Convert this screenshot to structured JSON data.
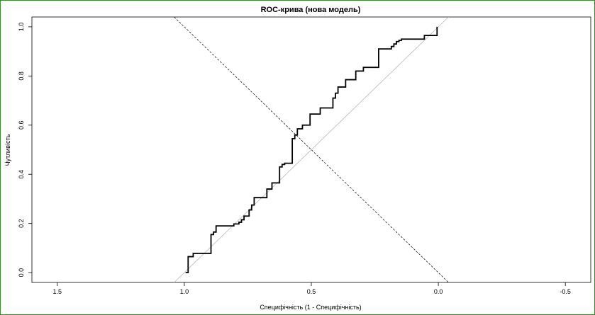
{
  "chart_data": {
    "type": "line",
    "title": "ROC-крива (нова модель)",
    "xlabel": "Специфічність (1 - Специфічність)",
    "ylabel": "Чутливість",
    "x_reversed": true,
    "xlim": [
      1.6,
      -0.6
    ],
    "ylim": [
      -0.04,
      1.04
    ],
    "x_ticks": [
      1.5,
      1.0,
      0.5,
      0.0,
      -0.5
    ],
    "x_tick_labels": [
      "1.5",
      "1.0",
      "0.5",
      "0.0",
      "-0.5"
    ],
    "y_ticks": [
      0.0,
      0.2,
      0.4,
      0.6,
      0.8,
      1.0
    ],
    "y_tick_labels": [
      "0.0",
      "0.2",
      "0.4",
      "0.6",
      "0.8",
      "1.0"
    ],
    "grid": false,
    "series": [
      {
        "role": "roc-curve",
        "style": "solid",
        "x": [
          0.995,
          0.995,
          0.985,
          0.985,
          0.965,
          0.965,
          0.895,
          0.895,
          0.885,
          0.885,
          0.875,
          0.875,
          0.805,
          0.805,
          0.785,
          0.785,
          0.775,
          0.775,
          0.765,
          0.765,
          0.745,
          0.745,
          0.735,
          0.735,
          0.725,
          0.725,
          0.675,
          0.675,
          0.655,
          0.655,
          0.625,
          0.625,
          0.615,
          0.615,
          0.605,
          0.605,
          0.575,
          0.575,
          0.565,
          0.565,
          0.555,
          0.555,
          0.535,
          0.535,
          0.505,
          0.505,
          0.465,
          0.465,
          0.415,
          0.415,
          0.405,
          0.405,
          0.395,
          0.395,
          0.365,
          0.365,
          0.325,
          0.325,
          0.295,
          0.295,
          0.235,
          0.235,
          0.185,
          0.185,
          0.175,
          0.175,
          0.165,
          0.165,
          0.155,
          0.155,
          0.145,
          0.145,
          0.055,
          0.055,
          0.005,
          0.005
        ],
        "y": [
          0.0,
          0.0,
          0.0,
          0.065,
          0.065,
          0.078,
          0.078,
          0.155,
          0.155,
          0.165,
          0.165,
          0.19,
          0.19,
          0.198,
          0.198,
          0.205,
          0.205,
          0.215,
          0.215,
          0.23,
          0.23,
          0.255,
          0.255,
          0.275,
          0.275,
          0.305,
          0.305,
          0.34,
          0.34,
          0.365,
          0.365,
          0.43,
          0.43,
          0.44,
          0.44,
          0.445,
          0.445,
          0.545,
          0.545,
          0.56,
          0.56,
          0.585,
          0.585,
          0.6,
          0.6,
          0.645,
          0.645,
          0.67,
          0.67,
          0.71,
          0.71,
          0.73,
          0.73,
          0.755,
          0.755,
          0.785,
          0.785,
          0.82,
          0.82,
          0.835,
          0.835,
          0.91,
          0.91,
          0.92,
          0.92,
          0.93,
          0.93,
          0.94,
          0.94,
          0.945,
          0.945,
          0.95,
          0.95,
          0.965,
          0.965,
          1.0
        ]
      },
      {
        "role": "diagonal-reference",
        "style": "solid-gray",
        "x": [
          1.04,
          -0.04
        ],
        "y": [
          -0.04,
          1.04
        ]
      },
      {
        "role": "anti-diagonal",
        "style": "dashed",
        "x": [
          1.04,
          -0.04
        ],
        "y": [
          1.04,
          -0.04
        ]
      }
    ]
  }
}
